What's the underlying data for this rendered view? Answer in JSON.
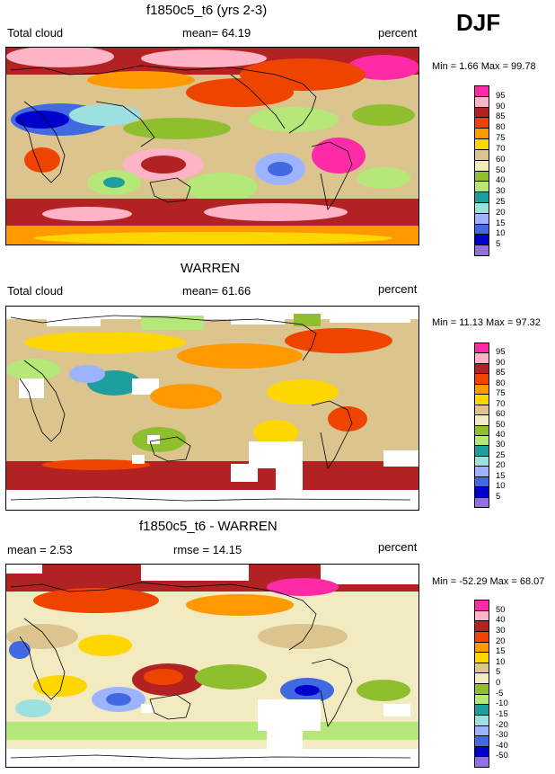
{
  "season": "DJF",
  "panels": [
    {
      "title": "f1850c5_t6 (yrs 2-3)",
      "left_label": "Total cloud",
      "center_label": "mean=  64.19",
      "units": "percent",
      "minmax": "Min =   1.66 Max =  99.78",
      "colorbar": {
        "labels": [
          "95",
          "90",
          "85",
          "80",
          "75",
          "70",
          "60",
          "50",
          "40",
          "30",
          "25",
          "20",
          "15",
          "10",
          "5"
        ],
        "colors": [
          "#ff2aa6",
          "#ffb3c6",
          "#b22222",
          "#ee4400",
          "#ff9900",
          "#ffd700",
          "#dcc48e",
          "#f2ebc2",
          "#8fbf2f",
          "#b5e878",
          "#1f9ea0",
          "#9de0e0",
          "#9cb3ff",
          "#4169e1",
          "#0000cd",
          "#9370db"
        ]
      }
    },
    {
      "title": "WARREN",
      "left_label": "Total cloud",
      "center_label": "mean=  61.66",
      "units": "percent",
      "minmax": "Min =  11.13 Max =  97.32",
      "colorbar": {
        "labels": [
          "95",
          "90",
          "85",
          "80",
          "75",
          "70",
          "60",
          "50",
          "40",
          "30",
          "25",
          "20",
          "15",
          "10",
          "5"
        ],
        "colors": [
          "#ff2aa6",
          "#ffb3c6",
          "#b22222",
          "#ee4400",
          "#ff9900",
          "#ffd700",
          "#dcc48e",
          "#f2ebc2",
          "#8fbf2f",
          "#b5e878",
          "#1f9ea0",
          "#9de0e0",
          "#9cb3ff",
          "#4169e1",
          "#0000cd",
          "#9370db"
        ]
      }
    },
    {
      "title": "f1850c5_t6 - WARREN",
      "left_label": "mean =   2.53",
      "center_label": "rmse =  14.15",
      "units": "percent",
      "minmax": "Min = -52.29 Max =  68.07",
      "colorbar": {
        "labels": [
          "50",
          "40",
          "30",
          "20",
          "15",
          "10",
          "5",
          "0",
          "-5",
          "-10",
          "-15",
          "-20",
          "-30",
          "-40",
          "-50"
        ],
        "colors": [
          "#ff2aa6",
          "#ffb3c6",
          "#b22222",
          "#ee4400",
          "#ff9900",
          "#ffd700",
          "#dcc48e",
          "#f2ebc2",
          "#8fbf2f",
          "#b5e878",
          "#1f9ea0",
          "#9de0e0",
          "#9cb3ff",
          "#4169e1",
          "#0000cd",
          "#9370db"
        ]
      }
    }
  ],
  "chart_data": [
    {
      "type": "heatmap",
      "title": "f1850c5_t6 (yrs 2-3)",
      "variable": "Total cloud",
      "units": "percent",
      "season": "DJF",
      "mean": 64.19,
      "min": 1.66,
      "max": 99.78,
      "levels": [
        5,
        10,
        15,
        20,
        25,
        30,
        40,
        50,
        60,
        70,
        75,
        80,
        85,
        90,
        95
      ]
    },
    {
      "type": "heatmap",
      "title": "WARREN",
      "variable": "Total cloud",
      "units": "percent",
      "season": "DJF",
      "mean": 61.66,
      "min": 11.13,
      "max": 97.32,
      "levels": [
        5,
        10,
        15,
        20,
        25,
        30,
        40,
        50,
        60,
        70,
        75,
        80,
        85,
        90,
        95
      ]
    },
    {
      "type": "heatmap",
      "title": "f1850c5_t6 - WARREN",
      "units": "percent",
      "season": "DJF",
      "mean": 2.53,
      "rmse": 14.15,
      "min": -52.29,
      "max": 68.07,
      "levels": [
        -50,
        -40,
        -30,
        -20,
        -15,
        -10,
        -5,
        0,
        5,
        10,
        15,
        20,
        30,
        40,
        50
      ]
    }
  ]
}
